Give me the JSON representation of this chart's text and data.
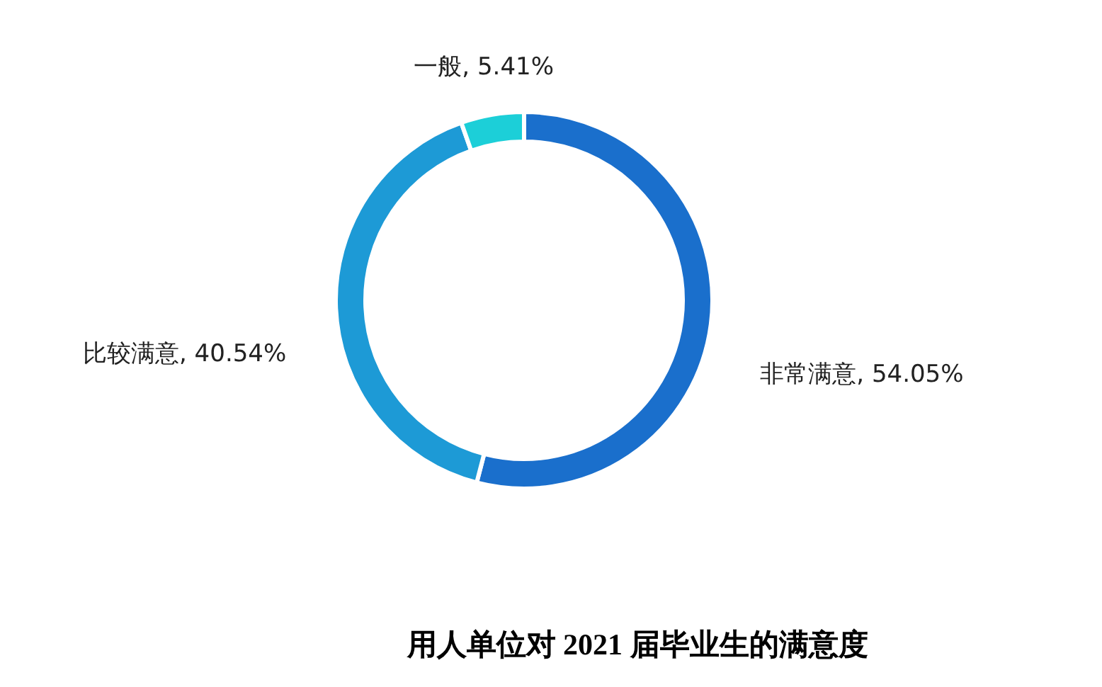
{
  "chart_data": {
    "type": "donut",
    "title": "用人单位对 2021 届毕业生的满意度",
    "categories": [
      "非常满意",
      "比较满意",
      "一般"
    ],
    "values": [
      54.05,
      40.54,
      5.41
    ],
    "value_labels": [
      ", 54.05%",
      ", 40.54%",
      ", 5.41%"
    ],
    "colors": [
      "#1a6fcc",
      "#1d9ad6",
      "#1ccfd8"
    ]
  }
}
